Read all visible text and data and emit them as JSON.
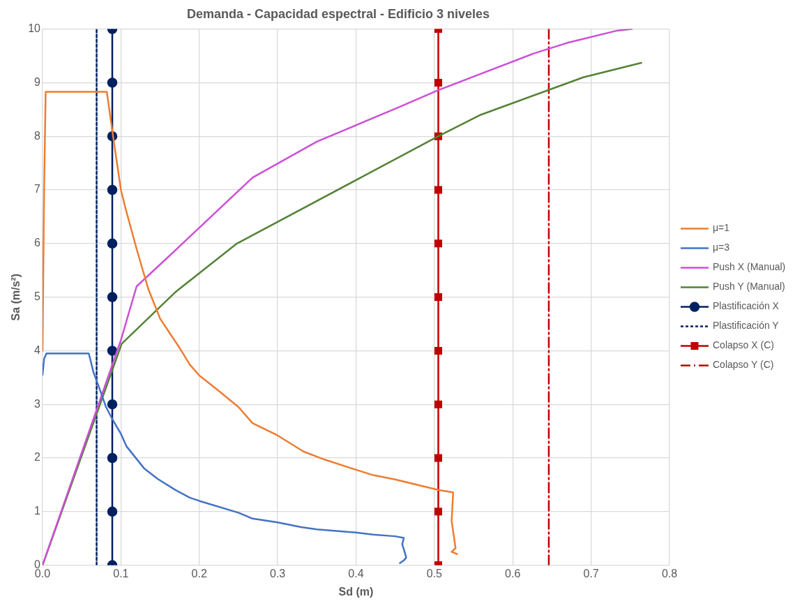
{
  "chart_data": {
    "type": "line",
    "title": "Demanda - Capacidad espectral - Edificio 3 niveles",
    "xlabel": "Sd (m)",
    "ylabel": "Sa (m/s²)",
    "xlim": [
      0,
      0.8
    ],
    "xticks": [
      {
        "value": 0,
        "label": "0.0"
      },
      {
        "value": 0.1,
        "label": "0.1"
      },
      {
        "value": 0.2,
        "label": "0.2"
      },
      {
        "value": 0.3,
        "label": "0.3"
      },
      {
        "value": 0.4,
        "label": "0.4"
      },
      {
        "value": 0.5,
        "label": "0.5"
      },
      {
        "value": 0.6,
        "label": "0.6"
      },
      {
        "value": 0.7,
        "label": "0.7"
      },
      {
        "value": 0.8,
        "label": "0.8"
      }
    ],
    "ylim": [
      0,
      10
    ],
    "yticks": [
      0,
      1,
      2,
      3,
      4,
      5,
      6,
      7,
      8,
      9,
      10
    ],
    "grid": true,
    "legend": "right",
    "marker": "none",
    "line_style": "solid",
    "series": [
      {
        "name": "μ=1",
        "color": "#ed7d31",
        "x": [
          0,
          0.002,
          0.004,
          0.082,
          0.09,
          0.1,
          0.106,
          0.12,
          0.135,
          0.15,
          0.16,
          0.175,
          0.188,
          0.2,
          0.225,
          0.25,
          0.268,
          0.3,
          0.333,
          0.36,
          0.4,
          0.422,
          0.45,
          0.506,
          0.524,
          0.522,
          0.527,
          0.522,
          0.529
        ],
        "values": [
          4.0,
          7.0,
          8.83,
          8.83,
          8.0,
          7.0,
          6.65,
          5.9,
          5.15,
          4.6,
          4.38,
          4.05,
          3.74,
          3.54,
          3.25,
          2.95,
          2.65,
          2.42,
          2.12,
          1.97,
          1.78,
          1.68,
          1.6,
          1.4,
          1.36,
          0.83,
          0.32,
          0.25,
          0.21
        ]
      },
      {
        "name": "μ=3",
        "color": "#4472c4",
        "x": [
          0,
          0.002,
          0.005,
          0.059,
          0.065,
          0.075,
          0.081,
          0.09,
          0.1,
          0.107,
          0.13,
          0.147,
          0.17,
          0.188,
          0.2,
          0.25,
          0.268,
          0.3,
          0.33,
          0.35,
          0.4,
          0.422,
          0.45,
          0.461,
          0.459,
          0.462,
          0.464,
          0.461,
          0.456
        ],
        "values": [
          3.55,
          3.85,
          3.95,
          3.95,
          3.6,
          3.2,
          2.95,
          2.7,
          2.45,
          2.22,
          1.8,
          1.61,
          1.4,
          1.26,
          1.2,
          0.98,
          0.87,
          0.8,
          0.71,
          0.67,
          0.61,
          0.57,
          0.54,
          0.51,
          0.39,
          0.25,
          0.14,
          0.09,
          0.04
        ]
      },
      {
        "name": "Push X (Manual)",
        "color": "#cc4fd6",
        "x": [
          0,
          0.1,
          0.12,
          0.175,
          0.268,
          0.35,
          0.456,
          0.505,
          0.626,
          0.669,
          0.733,
          0.752
        ],
        "values": [
          0,
          4.2,
          5.2,
          5.95,
          7.23,
          7.9,
          8.55,
          8.86,
          9.54,
          9.74,
          9.97,
          10
        ]
      },
      {
        "name": "Push Y (Manual)",
        "color": "#548235",
        "x": [
          0,
          0.101,
          0.17,
          0.248,
          0.505,
          0.559,
          0.69,
          0.764
        ],
        "values": [
          0,
          4.13,
          5.1,
          6.0,
          8.0,
          8.4,
          9.1,
          9.37
        ]
      },
      {
        "name": "Plastificación X",
        "color": "#002060",
        "marker": "circle",
        "x": [
          0.089,
          0.089,
          0.089,
          0.089,
          0.089,
          0.089,
          0.089,
          0.089,
          0.089,
          0.089,
          0.089
        ],
        "values": [
          0,
          1,
          2,
          3,
          4,
          5,
          6,
          7,
          8,
          9,
          10
        ]
      },
      {
        "name": "Plastificación Y",
        "color": "#002060",
        "line_style": "dotted",
        "x": [
          0.069,
          0.069
        ],
        "values": [
          0,
          10
        ]
      },
      {
        "name": "Colapso X (C)",
        "color": "#c00000",
        "marker": "square",
        "x": [
          0.505,
          0.505,
          0.505,
          0.505,
          0.505,
          0.505,
          0.505,
          0.505,
          0.505,
          0.505,
          0.505
        ],
        "values": [
          0,
          1,
          2,
          3,
          4,
          5,
          6,
          7,
          8,
          9,
          10
        ]
      },
      {
        "name": "Colapso Y (C)",
        "color": "#c00000",
        "line_style": "dashed",
        "x": [
          0.646,
          0.646
        ],
        "values": [
          0,
          10
        ]
      }
    ]
  }
}
